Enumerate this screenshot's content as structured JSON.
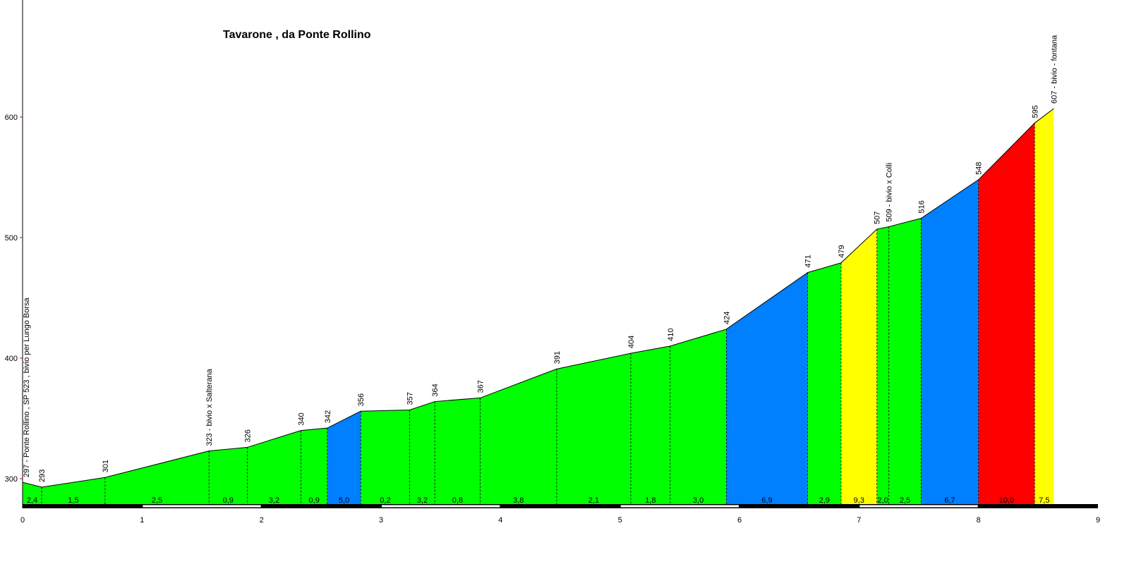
{
  "chart_data": {
    "type": "area",
    "title": "Tavarone , da Ponte Rollino",
    "xlabel": "",
    "ylabel": "",
    "xlim": [
      0,
      9
    ],
    "ylim": [
      275,
      700
    ],
    "x_ticks": [
      0,
      1,
      2,
      3,
      4,
      5,
      6,
      7,
      8,
      9
    ],
    "y_ticks": [
      300,
      400,
      500,
      600
    ],
    "grid": false,
    "profile": {
      "x": [
        0,
        0.16,
        0.69,
        1.56,
        1.88,
        2.33,
        2.55,
        2.83,
        3.24,
        3.45,
        3.83,
        4.47,
        5.09,
        5.42,
        5.89,
        6.57,
        6.85,
        7.15,
        7.25,
        7.52,
        8.0,
        8.47,
        8.63
      ],
      "y": [
        297,
        293,
        301,
        323,
        326,
        340,
        342,
        356,
        357,
        364,
        367,
        391,
        404,
        410,
        424,
        471,
        479,
        507,
        509,
        516,
        548,
        595,
        607
      ]
    },
    "point_labels": [
      "297 - Ponte Rollino , SP 523 , bivio per Lungo Borsa",
      "293",
      "301",
      "323 - bivio x Salterana",
      "326",
      "340",
      "342",
      "356",
      "357",
      "364",
      "367",
      "391",
      "404",
      "410",
      "424",
      "471",
      "479",
      "507",
      "509 - bivio x Colli",
      "516",
      "548",
      "595",
      "607 - bivio - fontana"
    ],
    "segment_gradients": [
      "2,4",
      "1,5",
      "2,5",
      "0,9",
      "3,2",
      "0,9",
      "5,0",
      "0,2",
      "3,2",
      "0,8",
      "3,8",
      "2,1",
      "1,8",
      "3,0",
      "6,9",
      "2,9",
      "9,3",
      "2,0",
      "2,5",
      "6,7",
      "10,0",
      "7,5"
    ],
    "segment_colors": [
      "#00ff00",
      "#00ff00",
      "#00ff00",
      "#00ff00",
      "#00ff00",
      "#00ff00",
      "#007fff",
      "#00ff00",
      "#00ff00",
      "#00ff00",
      "#00ff00",
      "#00ff00",
      "#00ff00",
      "#00ff00",
      "#007fff",
      "#00ff00",
      "#ffff00",
      "#00ff00",
      "#00ff00",
      "#007fff",
      "#ff0000",
      "#ffff00"
    ],
    "line_color": "#000000"
  }
}
